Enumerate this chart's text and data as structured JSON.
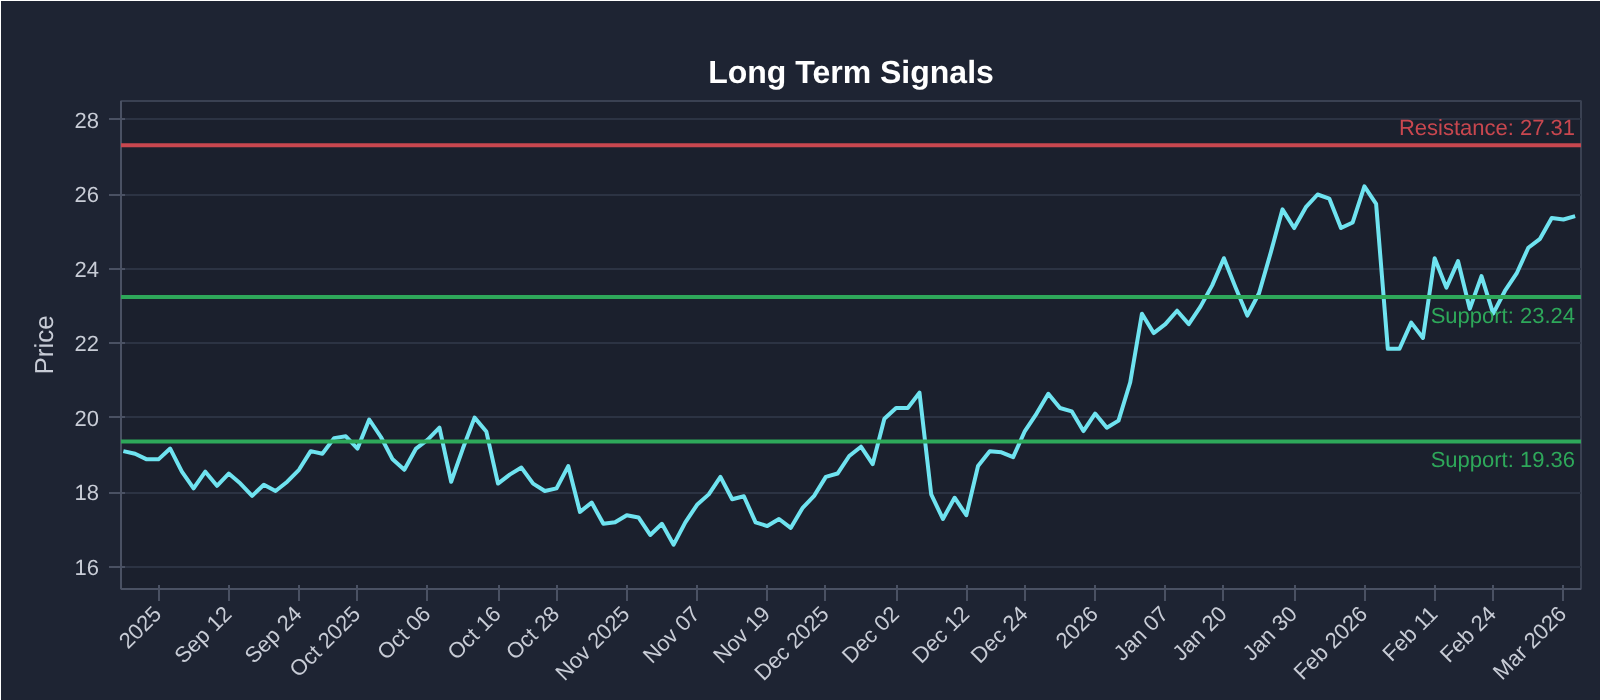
{
  "chart_data": {
    "type": "line",
    "title": "Long Term Signals",
    "ylabel": "Price",
    "categories": [
      null,
      null,
      null,
      "2025",
      null,
      null,
      null,
      null,
      null,
      "Sep 12",
      null,
      null,
      null,
      null,
      null,
      "Sep 24",
      null,
      null,
      null,
      null,
      "Oct 2025",
      null,
      null,
      null,
      null,
      null,
      "Oct 06",
      null,
      null,
      null,
      null,
      null,
      "Oct 16",
      null,
      null,
      null,
      null,
      "Oct 28",
      null,
      null,
      null,
      null,
      null,
      "Nov 2025",
      null,
      null,
      null,
      null,
      null,
      "Nov 07",
      null,
      null,
      null,
      null,
      null,
      "Nov 19",
      null,
      null,
      null,
      null,
      "Dec 2025",
      null,
      null,
      null,
      null,
      null,
      "Dec 02",
      null,
      null,
      null,
      null,
      null,
      "Dec 12",
      null,
      null,
      null,
      null,
      "Dec 24",
      null,
      null,
      null,
      null,
      null,
      "2026",
      null,
      null,
      null,
      null,
      null,
      "Jan 07",
      null,
      null,
      null,
      null,
      "Jan 20",
      null,
      null,
      null,
      null,
      null,
      "Jan 30",
      null,
      null,
      null,
      null,
      null,
      "Feb 2026",
      null,
      null,
      null,
      null,
      null,
      "Feb 11",
      null,
      null,
      null,
      null,
      "Feb 24",
      null,
      null,
      null,
      null,
      null,
      "Mar 2026",
      null
    ],
    "series": [
      {
        "color": "#6fe3f0",
        "values": [
          19.1,
          19.03,
          18.88,
          18.88,
          19.17,
          18.55,
          18.1,
          18.55,
          18.17,
          18.5,
          18.23,
          17.9,
          18.2,
          18.03,
          18.28,
          18.6,
          19.1,
          19.03,
          19.45,
          19.5,
          19.17,
          19.95,
          19.48,
          18.88,
          18.6,
          19.17,
          19.41,
          19.73,
          18.28,
          19.17,
          20.0,
          19.63,
          18.23,
          18.47,
          18.66,
          18.23,
          18.03,
          18.1,
          18.7,
          17.47,
          17.72,
          17.15,
          17.19,
          17.38,
          17.32,
          16.85,
          17.15,
          16.59,
          17.19,
          17.66,
          17.94,
          18.41,
          17.81,
          17.89,
          17.19,
          17.09,
          17.28,
          17.04,
          17.57,
          17.9,
          18.41,
          18.5,
          18.97,
          19.22,
          18.75,
          19.97,
          20.26,
          20.26,
          20.67,
          17.94,
          17.28,
          17.85,
          17.38,
          18.7,
          19.1,
          19.07,
          18.94,
          19.64,
          20.11,
          20.64,
          20.26,
          20.17,
          19.64,
          20.11,
          19.73,
          19.92,
          20.95,
          22.79,
          22.27,
          22.51,
          22.87,
          22.51,
          22.98,
          23.55,
          24.28,
          23.49,
          22.74,
          23.34,
          24.43,
          25.59,
          25.09,
          25.65,
          25.99,
          25.88,
          25.09,
          25.24,
          26.21,
          25.74,
          21.85,
          21.85,
          22.55,
          22.14,
          24.28,
          23.49,
          24.2,
          22.92,
          23.8,
          22.79,
          23.4,
          23.87,
          24.56,
          24.8,
          25.36,
          25.32,
          25.41
        ]
      }
    ],
    "ylim": [
      15.4,
      28.5
    ],
    "yticks": [
      16,
      18,
      20,
      22,
      24,
      26,
      28
    ],
    "grid": "y",
    "line_style": "solid",
    "marker": "none",
    "ref_lines": [
      {
        "axis": "y",
        "value": 27.31,
        "label": "Resistance: 27.31",
        "color": "#c9474f"
      },
      {
        "axis": "y",
        "value": 23.24,
        "label": "Support: 23.24",
        "color": "#2ea85a"
      },
      {
        "axis": "y",
        "value": 19.36,
        "label": "Support: 19.36",
        "color": "#2ea85a"
      }
    ]
  }
}
